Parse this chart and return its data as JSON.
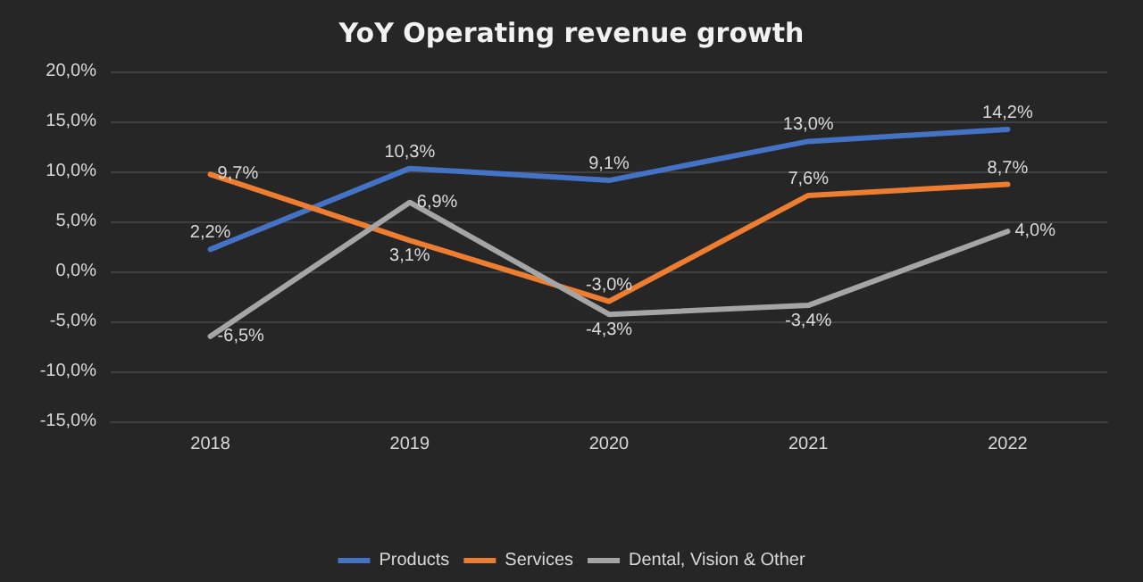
{
  "chart_data": {
    "type": "line",
    "title": "YoY Operating revenue growth",
    "categories": [
      "2018",
      "2019",
      "2020",
      "2021",
      "2022"
    ],
    "series": [
      {
        "name": "Products",
        "color": "#4472c4",
        "values": [
          2.2,
          10.3,
          9.1,
          13.0,
          14.2
        ],
        "value_labels": [
          "2,2%",
          "10,3%",
          "9,1%",
          "13,0%",
          "14,2%"
        ]
      },
      {
        "name": "Services",
        "color": "#ed7d31",
        "values": [
          9.7,
          3.1,
          -3.0,
          7.6,
          8.7
        ],
        "value_labels": [
          "9,7%",
          "3,1%",
          "-3,0%",
          "7,6%",
          "8,7%"
        ]
      },
      {
        "name": "Dental, Vision & Other",
        "color": "#a5a5a5",
        "values": [
          -6.5,
          6.9,
          -4.3,
          -3.4,
          4.0
        ],
        "value_labels": [
          "-6,5%",
          "6,9%",
          "-4,3%",
          "-3,4%",
          "4,0%"
        ]
      }
    ],
    "ylim": [
      -15,
      20
    ],
    "yticks": [
      {
        "value": -15,
        "label": "-15,0%"
      },
      {
        "value": -10,
        "label": "-10,0%"
      },
      {
        "value": -5,
        "label": "-5,0%"
      },
      {
        "value": 0,
        "label": "0,0%"
      },
      {
        "value": 5,
        "label": "5,0%"
      },
      {
        "value": 10,
        "label": "10,0%"
      },
      {
        "value": 15,
        "label": "15,0%"
      },
      {
        "value": 20,
        "label": "20,0%"
      }
    ],
    "grid": "y",
    "legend": "bottom",
    "marker": "none",
    "line_style": "solid"
  }
}
